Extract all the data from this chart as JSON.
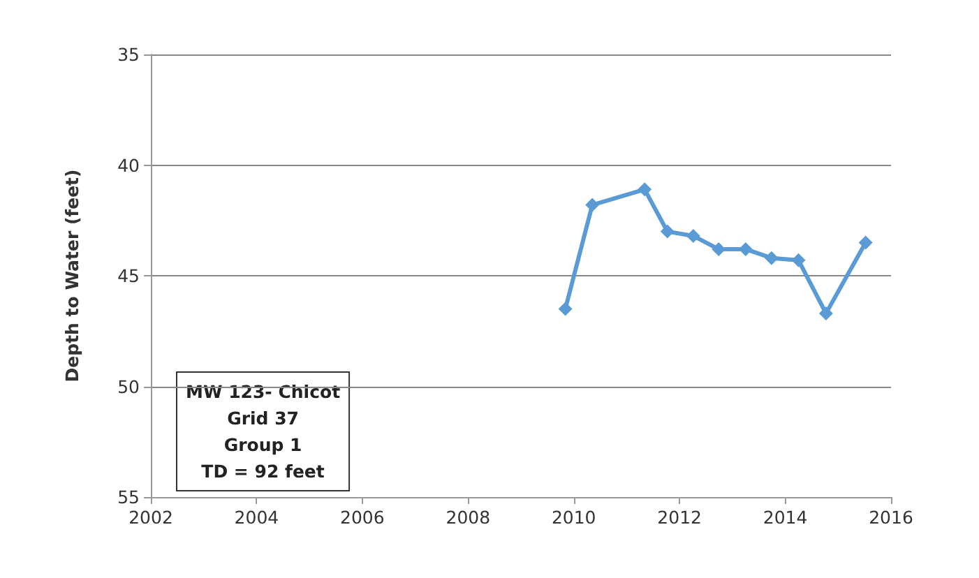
{
  "chart_data": {
    "type": "line",
    "ylabel": "Depth to Water (feet)",
    "x": [
      2009.84,
      2010.35,
      2011.34,
      2011.77,
      2012.26,
      2012.74,
      2013.25,
      2013.74,
      2014.25,
      2014.77,
      2015.52
    ],
    "series": [
      {
        "color": "#5b9bd5",
        "values": [
          46.5,
          41.8,
          41.1,
          43.0,
          43.2,
          43.8,
          43.8,
          44.2,
          44.3,
          46.7,
          43.5
        ]
      }
    ],
    "xlim": [
      2002,
      2016
    ],
    "xticks": [
      2002,
      2004,
      2006,
      2008,
      2010,
      2012,
      2014,
      2016
    ],
    "ylim": [
      55,
      35
    ],
    "yticks": [
      35,
      40,
      45,
      50,
      55
    ],
    "grid": "y",
    "marker": "diamond",
    "line_style": "solid",
    "annotations": [
      "MW 123- Chicot\nGrid 37\nGroup 1\nTD = 92 feet"
    ]
  }
}
